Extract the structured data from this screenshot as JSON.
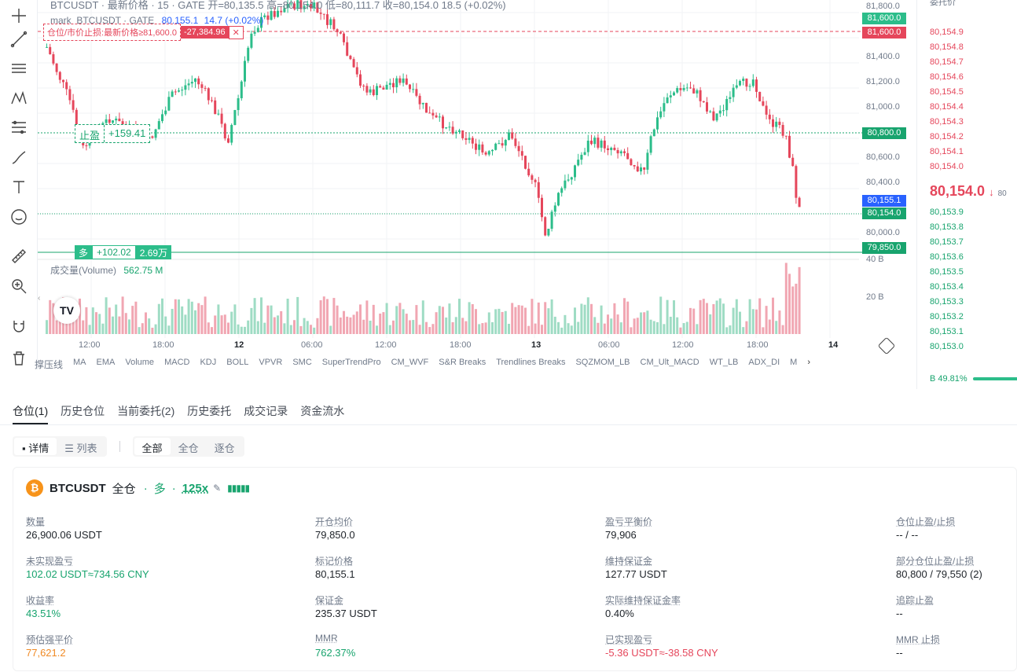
{
  "legend": {
    "line1": "BTCUSDT · 最新价格 · 15 · GATE  开=80,135.5  高=80,154.0  低=80,111.7  收=80,154.0  18.5 (+0.02%)",
    "mark_label": "mark_BTCUSDT · GATE",
    "mark_value": "80,155.1",
    "mark_change": "14.7 (+0.02%)",
    "volume_label": "成交量(Volume)",
    "volume_value": "562.75 M"
  },
  "chart_labels": {
    "sl_text": "仓位/市价止损:最新价格≥81,600.0",
    "sl_pnl": "-27,384.96",
    "sl_close": "✕",
    "tp_text": "止盈",
    "tp_pnl": "+159.41",
    "pos_side": "多",
    "pos_pnl": "+102.02",
    "pos_qty": "2.69万"
  },
  "price_axis": [
    "81,800.0",
    "81,400.0",
    "81,200.0",
    "81,000.0",
    "80,600.0",
    "80,400.0",
    "80,000.0",
    "40 B",
    "20 B"
  ],
  "price_tags": [
    {
      "text": "81,600.0",
      "color": "#2cbd8a"
    },
    {
      "text": "81,600.0",
      "color": "#e5465b"
    },
    {
      "text": "80,800.0",
      "color": "#18a46e"
    },
    {
      "text": "80,155.1",
      "color": "#2962ff"
    },
    {
      "text": "80,154.0",
      "color": "#18a46e"
    },
    {
      "text": "79,850.0",
      "color": "#18a46e"
    }
  ],
  "time_axis": [
    "12:00",
    "18:00",
    "12",
    "06:00",
    "12:00",
    "18:00",
    "13",
    "06:00",
    "12:00",
    "18:00",
    "14"
  ],
  "indicators": [
    "撑压线",
    "MA",
    "EMA",
    "Volume",
    "MACD",
    "KDJ",
    "BOLL",
    "VPVR",
    "SMC",
    "SuperTrendPro",
    "CM_WVF",
    "S&R Breaks",
    "Trendlines Breaks",
    "SQZMOM_LB",
    "CM_Ult_MACD",
    "WT_LB",
    "ADX_DI",
    "M"
  ],
  "orderbook": {
    "header": "委托价",
    "asks": [
      "80,154.9",
      "80,154.8",
      "80,154.7",
      "80,154.6",
      "80,154.5",
      "80,154.4",
      "80,154.3",
      "80,154.2",
      "80,154.1",
      "80,154.0"
    ],
    "last_price": "80,154.0",
    "last_arrow": "↓",
    "last_suffix": "80",
    "bids": [
      "80,153.9",
      "80,153.8",
      "80,153.7",
      "80,153.6",
      "80,153.5",
      "80,153.4",
      "80,153.3",
      "80,153.2",
      "80,153.1",
      "80,153.0"
    ],
    "ratio": "B 49.81%"
  },
  "tabs": [
    "仓位(1)",
    "历史仓位",
    "当前委托(2)",
    "历史委托",
    "成交记录",
    "资金流水"
  ],
  "view_toggle": {
    "detail": "详情",
    "list": "列表"
  },
  "margin_filter": [
    "全部",
    "全仓",
    "逐仓"
  ],
  "position": {
    "symbol": "BTCUSDT",
    "mode": "全仓",
    "side": "多",
    "leverage": "125x",
    "fields": [
      {
        "label": "数量",
        "value": "26,900.06 USDT",
        "cls": ""
      },
      {
        "label": "开仓均价",
        "value": "79,850.0",
        "cls": ""
      },
      {
        "label": "盈亏平衡价",
        "value": "79,906",
        "cls": ""
      },
      {
        "label": "仓位止盈/止损",
        "value": "-- / --",
        "cls": ""
      },
      {
        "label": "未实现盈亏",
        "value": "102.02 USDT≈734.56 CNY",
        "cls": "green"
      },
      {
        "label": "标记价格",
        "value": "80,155.1",
        "cls": ""
      },
      {
        "label": "维持保证金",
        "value": "127.77 USDT",
        "cls": ""
      },
      {
        "label": "部分仓位止盈/止损",
        "value": "80,800 / 79,550 (2)",
        "cls": ""
      },
      {
        "label": "收益率",
        "value": "43.51%",
        "cls": "green"
      },
      {
        "label": "保证金",
        "value": "235.37 USDT",
        "cls": ""
      },
      {
        "label": "实际维持保证金率",
        "value": "0.40%",
        "cls": ""
      },
      {
        "label": "追踪止盈",
        "value": "--",
        "cls": ""
      },
      {
        "label": "预估强平价",
        "value": "77,621.2",
        "cls": "orange"
      },
      {
        "label": "MMR",
        "value": "762.37%",
        "cls": "green"
      },
      {
        "label": "已实现盈亏",
        "value": "-5.36 USDT≈-38.58 CNY",
        "cls": "red"
      },
      {
        "label": "MMR 止损",
        "value": "--",
        "cls": ""
      }
    ]
  }
}
